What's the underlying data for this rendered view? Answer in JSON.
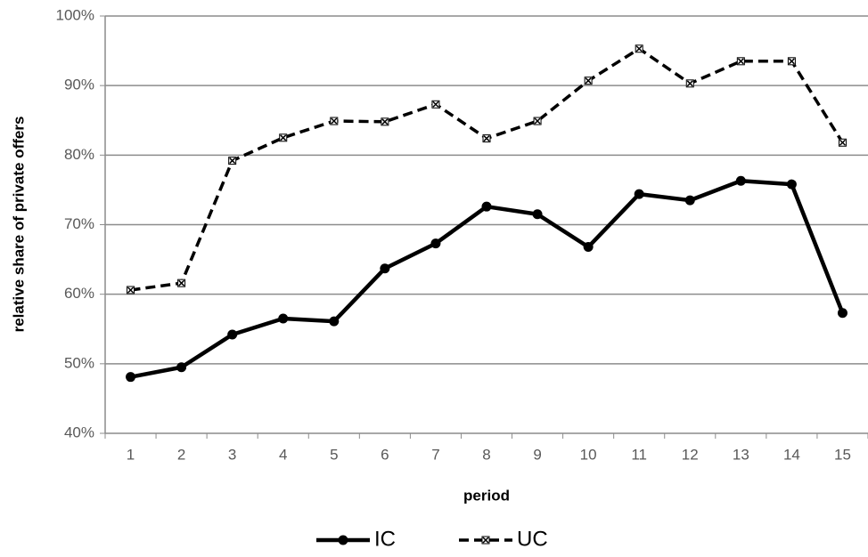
{
  "chart_data": {
    "type": "line",
    "x_label": "period",
    "y_label": "relative share of private offers",
    "categories": [
      "1",
      "2",
      "3",
      "4",
      "5",
      "6",
      "7",
      "8",
      "9",
      "10",
      "11",
      "12",
      "13",
      "14",
      "15"
    ],
    "series": [
      {
        "name": "IC",
        "color": "#000000",
        "dash": false,
        "marker": "circle",
        "values": [
          48.1,
          49.5,
          54.2,
          56.5,
          56.1,
          63.7,
          67.3,
          72.6,
          71.5,
          66.8,
          74.4,
          73.5,
          76.3,
          75.8,
          57.3
        ]
      },
      {
        "name": "UC",
        "color": "#000000",
        "dash": true,
        "marker": "x",
        "values": [
          60.6,
          61.6,
          79.2,
          82.5,
          84.9,
          84.8,
          87.3,
          82.4,
          84.9,
          90.7,
          95.3,
          90.3,
          93.5,
          93.5,
          81.8
        ]
      }
    ],
    "ylim": [
      40,
      100
    ],
    "yticks": [
      {
        "value": 40,
        "label": "40%"
      },
      {
        "value": 50,
        "label": "50%"
      },
      {
        "value": 60,
        "label": "60%"
      },
      {
        "value": 70,
        "label": "70%"
      },
      {
        "value": 80,
        "label": "80%"
      },
      {
        "value": 90,
        "label": "90%"
      },
      {
        "value": 100,
        "label": "100%"
      }
    ],
    "grid": true,
    "legend": "bottom"
  }
}
